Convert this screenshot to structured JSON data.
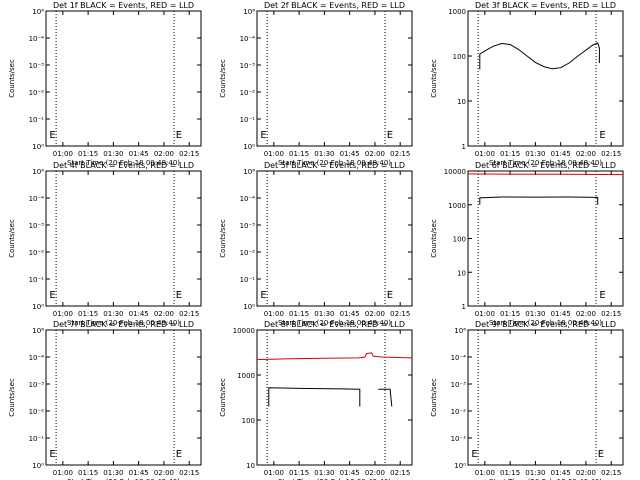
{
  "chart_data": [
    {
      "detector": "1f",
      "title": "Det 1f BLACK = Events, RED = LLD",
      "type": "line",
      "xlabel": "Start Time (20-Feb-18 00:49:40)",
      "ylabel": "Counts/sec",
      "yscale": "log",
      "ylim": [
        1,
        1000000
      ],
      "y_tick_labels": [
        "10⁶",
        "10⁻⁴",
        "10⁻³",
        "10⁻²",
        "10⁻¹",
        "10⁰"
      ],
      "x_tick_labels": [
        "01:00",
        "01:15",
        "01:30",
        "01:45",
        "02:00",
        "02:15"
      ],
      "x_ticks_min": [
        70,
        85,
        100,
        115,
        130,
        145
      ],
      "xlim_min": [
        60,
        152
      ],
      "vlines_min": [
        66,
        136
      ],
      "markers": [
        {
          "text": "E",
          "x_min": 62
        },
        {
          "text": "E",
          "x_min": 137
        }
      ],
      "series": []
    },
    {
      "detector": "2f",
      "title": "Det 2f BLACK = Events, RED = LLD",
      "type": "line",
      "xlabel": "Start Time (20-Feb-18 00:49:40)",
      "ylabel": "Counts/sec",
      "yscale": "log",
      "ylim": [
        1,
        1000000
      ],
      "y_tick_labels": [
        "10⁶",
        "10⁻⁴",
        "10⁻³",
        "10⁻²",
        "10⁻¹",
        "10⁰"
      ],
      "x_tick_labels": [
        "01:00",
        "01:15",
        "01:30",
        "01:45",
        "02:00",
        "02:15"
      ],
      "x_ticks_min": [
        70,
        85,
        100,
        115,
        130,
        145
      ],
      "xlim_min": [
        60,
        152
      ],
      "vlines_min": [
        66,
        136
      ],
      "markers": [
        {
          "text": "E",
          "x_min": 62
        },
        {
          "text": "E",
          "x_min": 137
        }
      ],
      "series": []
    },
    {
      "detector": "3f",
      "title": "Det 3f BLACK = Events, RED = LLD",
      "type": "line",
      "xlabel": "Start Time (20-Feb-18 00:48:40)",
      "ylabel": "Counts/sec",
      "yscale": "log",
      "ylim": [
        1,
        1000
      ],
      "y_tick_labels": [
        "1000",
        "100",
        "10",
        "1"
      ],
      "x_tick_labels": [
        "01:00",
        "01:15",
        "01:30",
        "01:45",
        "02:00",
        "02:15"
      ],
      "x_ticks_min": [
        70,
        85,
        100,
        115,
        130,
        145
      ],
      "xlim_min": [
        60,
        152
      ],
      "vlines_min": [
        66,
        136
      ],
      "markers": [
        {
          "text": "E",
          "x_min": 138
        }
      ],
      "series": [
        {
          "color": "#000000",
          "segments": [
            [
              [
                67,
                50
              ],
              [
                67,
                110
              ],
              [
                70,
                130
              ],
              [
                75,
                165
              ],
              [
                80,
                190
              ],
              [
                85,
                180
              ],
              [
                90,
                140
              ],
              [
                95,
                100
              ],
              [
                100,
                72
              ],
              [
                105,
                58
              ],
              [
                110,
                52
              ],
              [
                115,
                55
              ],
              [
                120,
                70
              ],
              [
                125,
                98
              ],
              [
                130,
                135
              ],
              [
                134,
                175
              ],
              [
                137,
                195
              ],
              [
                138,
                150
              ],
              [
                138,
                70
              ]
            ]
          ]
        }
      ]
    },
    {
      "detector": "4f",
      "title": "Det 4f BLACK = Events, RED = LLD",
      "type": "line",
      "xlabel": "Start Time (20-Feb-18 00:49:40)",
      "ylabel": "Counts/sec",
      "yscale": "log",
      "ylim": [
        1,
        1000000
      ],
      "y_tick_labels": [
        "10⁶",
        "10⁻⁴",
        "10⁻³",
        "10⁻²",
        "10⁻¹",
        "10⁰"
      ],
      "x_tick_labels": [
        "01:00",
        "01:15",
        "01:30",
        "01:45",
        "02:00",
        "02:15"
      ],
      "x_ticks_min": [
        70,
        85,
        100,
        115,
        130,
        145
      ],
      "xlim_min": [
        60,
        152
      ],
      "vlines_min": [
        66,
        136
      ],
      "markers": [
        {
          "text": "E",
          "x_min": 62
        },
        {
          "text": "E",
          "x_min": 137
        }
      ],
      "series": []
    },
    {
      "detector": "5f",
      "title": "Det 5f BLACK = Events, RED = LLD",
      "type": "line",
      "xlabel": "Start Time (20-Feb-18 00:49:40)",
      "ylabel": "Counts/sec",
      "yscale": "log",
      "ylim": [
        1,
        1000000
      ],
      "y_tick_labels": [
        "10⁶",
        "10⁻⁴",
        "10⁻³",
        "10⁻²",
        "10⁻¹",
        "10⁰"
      ],
      "x_tick_labels": [
        "01:00",
        "01:15",
        "01:30",
        "01:45",
        "02:00",
        "02:15"
      ],
      "x_ticks_min": [
        70,
        85,
        100,
        115,
        130,
        145
      ],
      "xlim_min": [
        60,
        152
      ],
      "vlines_min": [
        66,
        136
      ],
      "markers": [
        {
          "text": "E",
          "x_min": 62
        },
        {
          "text": "E",
          "x_min": 137
        }
      ],
      "series": []
    },
    {
      "detector": "6f",
      "title": "Det 6f BLACK = Events, RED = LLD",
      "type": "line",
      "xlabel": "Start Time (20-Feb-18 00:48:40)",
      "ylabel": "Counts/sec",
      "yscale": "log",
      "ylim": [
        1,
        10000
      ],
      "y_tick_labels": [
        "10000",
        "1000",
        "100",
        "10",
        "1"
      ],
      "x_tick_labels": [
        "01:00",
        "01:15",
        "01:30",
        "01:45",
        "02:00",
        "02:15"
      ],
      "x_ticks_min": [
        70,
        85,
        100,
        115,
        130,
        145
      ],
      "xlim_min": [
        60,
        152
      ],
      "vlines_min": [
        66,
        136
      ],
      "markers": [
        {
          "text": "E",
          "x_min": 138
        }
      ],
      "series": [
        {
          "color": "#dd0000",
          "segments": [
            [
              [
                60,
                8200
              ],
              [
                80,
                8100
              ],
              [
                100,
                8000
              ],
              [
                120,
                8050
              ],
              [
                140,
                7900
              ],
              [
                152,
                7800
              ]
            ]
          ]
        },
        {
          "color": "#000000",
          "segments": [
            [
              [
                67,
                1000
              ],
              [
                67,
                1600
              ],
              [
                80,
                1700
              ],
              [
                100,
                1680
              ],
              [
                120,
                1700
              ],
              [
                137,
                1650
              ],
              [
                137,
                1000
              ]
            ]
          ]
        }
      ]
    },
    {
      "detector": "7f",
      "title": "Det 7f BLACK = Events, RED = LLD",
      "type": "line",
      "xlabel": "Start Time (20-Feb-18 00:49:40)",
      "ylabel": "Counts/sec",
      "yscale": "log",
      "ylim": [
        1,
        1000000
      ],
      "y_tick_labels": [
        "10⁶",
        "10⁻⁴",
        "10⁻³",
        "10⁻²",
        "10⁻¹",
        "10⁰"
      ],
      "x_tick_labels": [
        "01:00",
        "01:15",
        "01:30",
        "01:45",
        "02:00",
        "02:15"
      ],
      "x_ticks_min": [
        70,
        85,
        100,
        115,
        130,
        145
      ],
      "xlim_min": [
        60,
        152
      ],
      "vlines_min": [
        66,
        136
      ],
      "markers": [
        {
          "text": "E",
          "x_min": 62
        },
        {
          "text": "E",
          "x_min": 137
        }
      ],
      "series": []
    },
    {
      "detector": "8f",
      "title": "Det 8f BLACK = Events, RED = LLD",
      "type": "line",
      "xlabel": "Start Time (20-Feb-18 00:49:40)",
      "ylabel": "Counts/sec",
      "yscale": "log",
      "ylim": [
        10,
        10000
      ],
      "y_tick_labels": [
        "10000",
        "1000",
        "100",
        "10"
      ],
      "x_tick_labels": [
        "01:00",
        "01:15",
        "01:30",
        "01:45",
        "02:00",
        "02:15"
      ],
      "x_ticks_min": [
        70,
        85,
        100,
        115,
        130,
        145
      ],
      "xlim_min": [
        60,
        152
      ],
      "vlines_min": [
        66,
        136
      ],
      "markers": [],
      "series": [
        {
          "color": "#dd0000",
          "segments": [
            [
              [
                60,
                2200
              ],
              [
                80,
                2300
              ],
              [
                100,
                2350
              ],
              [
                120,
                2400
              ],
              [
                124,
                2500
              ],
              [
                125,
                3000
              ],
              [
                128,
                3100
              ],
              [
                129,
                2600
              ],
              [
                135,
                2500
              ],
              [
                152,
                2400
              ]
            ]
          ]
        },
        {
          "color": "#000000",
          "segments": [
            [
              [
                67,
                200
              ],
              [
                67,
                520
              ],
              [
                90,
                500
              ],
              [
                110,
                490
              ],
              [
                121,
                480
              ],
              [
                121,
                200
              ]
            ],
            [
              [
                132,
                480
              ],
              [
                139,
                480
              ],
              [
                140,
                200
              ]
            ]
          ]
        }
      ]
    },
    {
      "detector": "9f",
      "title": "Det 9f BLACK = Events, RED = LLD",
      "type": "line",
      "xlabel": "Start Time (20-Feb-18 00:48:40)",
      "ylabel": "Counts/sec",
      "yscale": "log",
      "ylim": [
        1,
        1000000
      ],
      "y_tick_labels": [
        "10⁶",
        "10⁻⁴",
        "10⁻³",
        "10⁻²",
        "10⁻¹",
        "10⁰"
      ],
      "x_tick_labels": [
        "01:00",
        "01:15",
        "01:30",
        "01:45",
        "02:00",
        "02:15"
      ],
      "x_ticks_min": [
        70,
        85,
        100,
        115,
        130,
        145
      ],
      "xlim_min": [
        60,
        152
      ],
      "vlines_min": [
        66,
        136
      ],
      "markers": [
        {
          "text": "E",
          "x_min": 62
        },
        {
          "text": "E",
          "x_min": 137
        }
      ],
      "series": []
    }
  ]
}
